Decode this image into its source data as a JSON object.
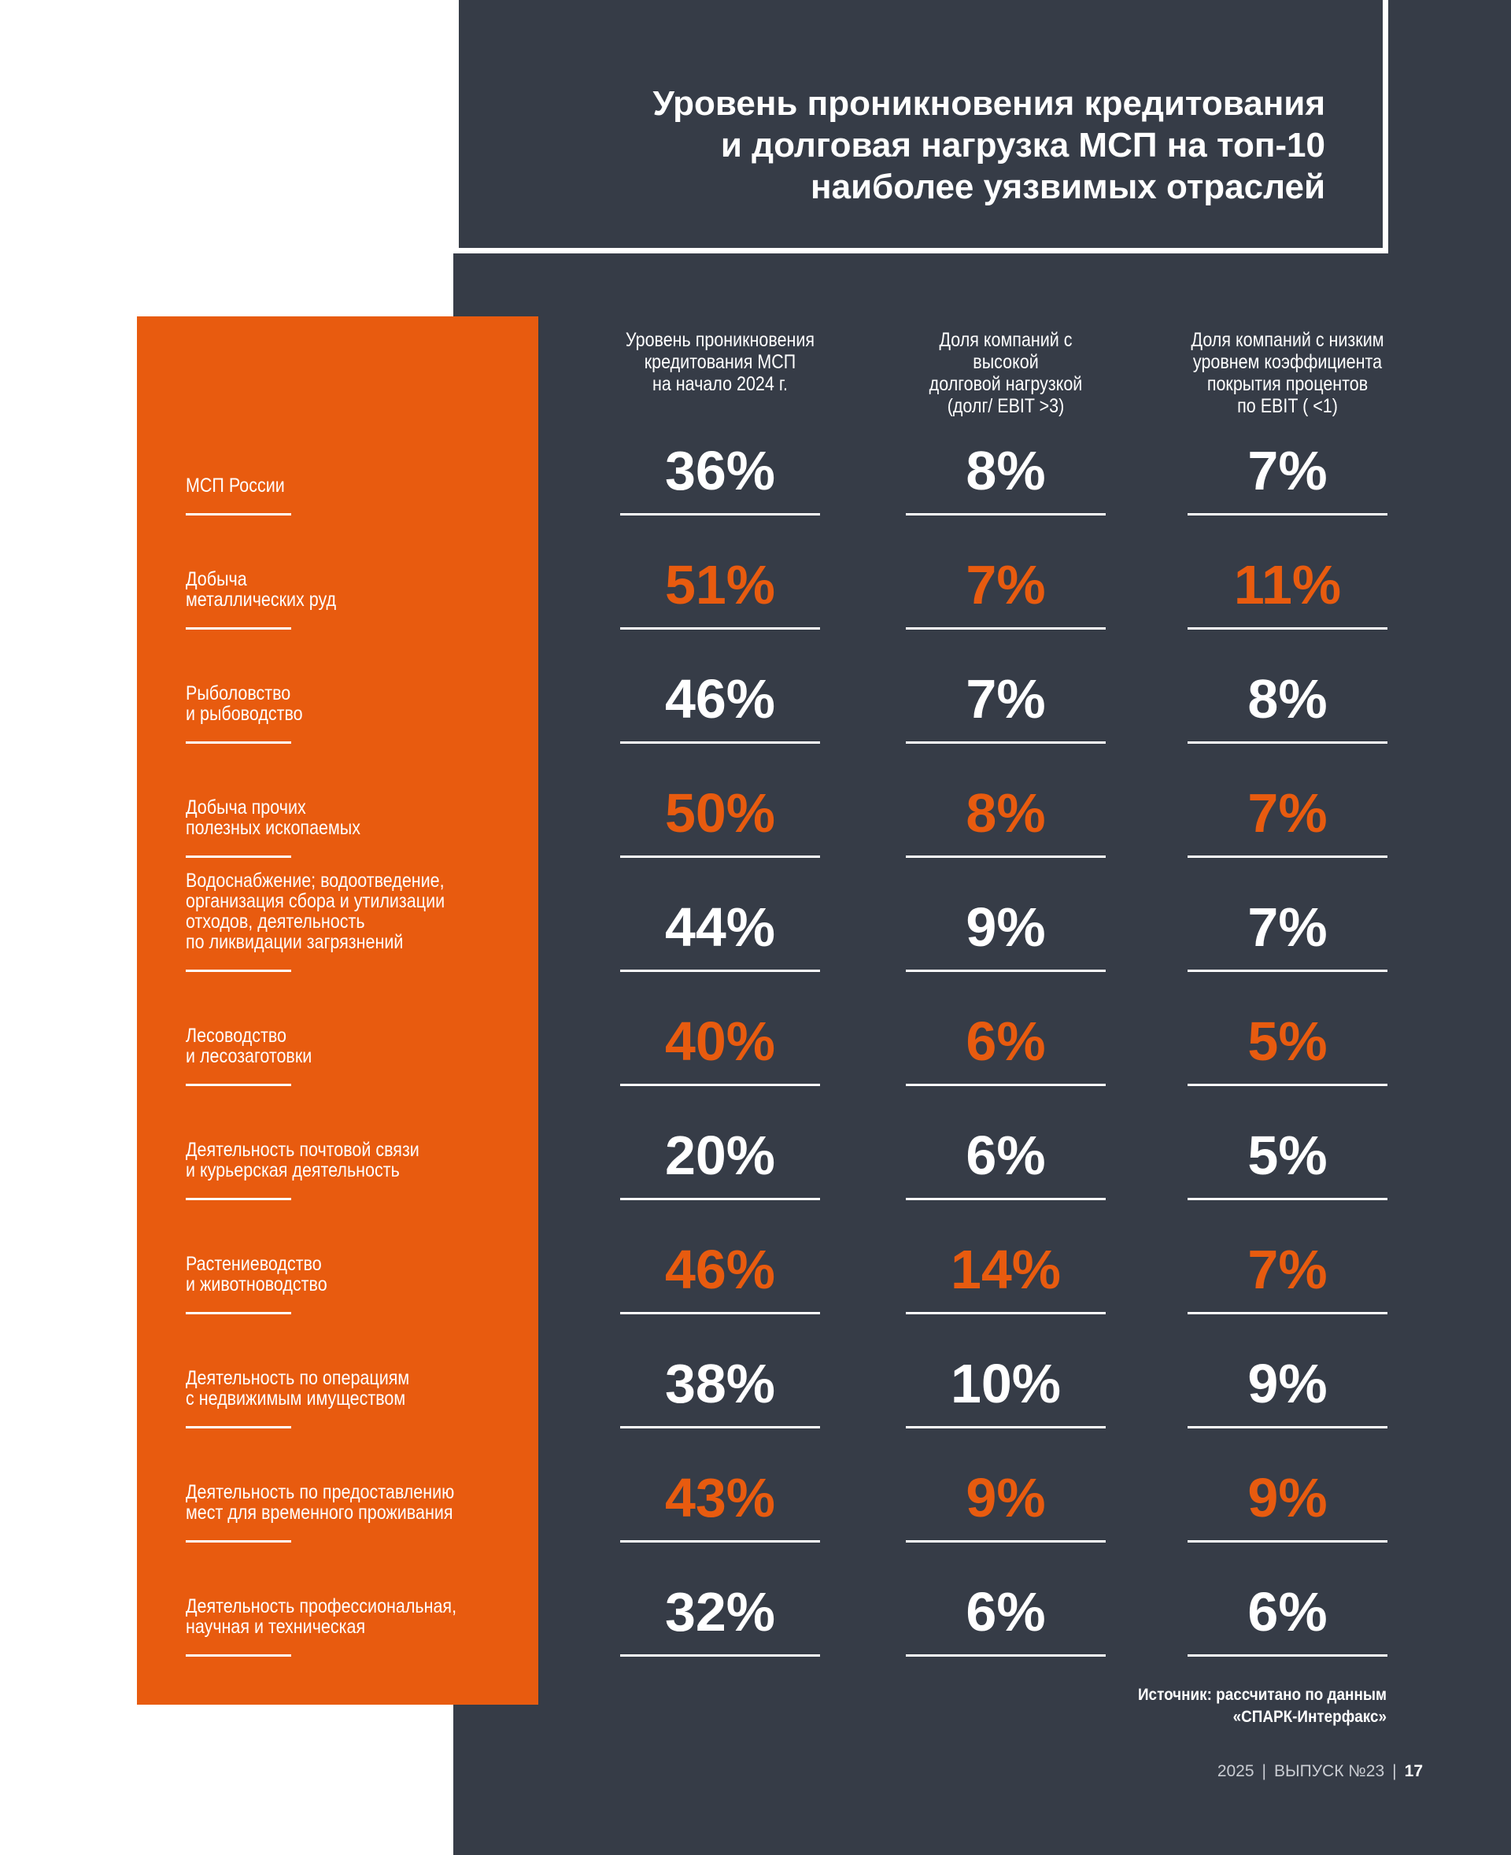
{
  "title": {
    "lines": [
      "Уровень проникновения кредитования",
      "и долговая нагрузка МСП на топ-10",
      "наиболее уязвимых отраслей"
    ]
  },
  "columns": [
    {
      "lines": [
        "Уровень проникновения",
        "кредитования МСП",
        "на начало 2024 г."
      ]
    },
    {
      "lines": [
        "Доля компаний с высокой",
        "долговой нагрузкой",
        "(долг/ EBIT >3)"
      ]
    },
    {
      "lines": [
        "Доля компаний с низким",
        "уровнем коэффициента",
        "покрытия процентов",
        "по EBIT ( <1)"
      ]
    }
  ],
  "rows": [
    {
      "label": [
        "МСП России"
      ],
      "values": [
        "36%",
        "8%",
        "7%"
      ],
      "highlight": false
    },
    {
      "label": [
        "Добыча",
        "металлических руд"
      ],
      "values": [
        "51%",
        "7%",
        "11%"
      ],
      "highlight": true
    },
    {
      "label": [
        "Рыболовство",
        "и рыбоводство"
      ],
      "values": [
        "46%",
        "7%",
        "8%"
      ],
      "highlight": false
    },
    {
      "label": [
        "Добыча прочих",
        "полезных ископаемых"
      ],
      "values": [
        "50%",
        "8%",
        "7%"
      ],
      "highlight": true
    },
    {
      "label": [
        "Водоснабжение; водоотведение,",
        "организация сбора и утилизации",
        "отходов, деятельность",
        "по ликвидации загрязнений"
      ],
      "values": [
        "44%",
        "9%",
        "7%"
      ],
      "highlight": false
    },
    {
      "label": [
        "Лесоводство",
        "и лесозаготовки"
      ],
      "values": [
        "40%",
        "6%",
        "5%"
      ],
      "highlight": true
    },
    {
      "label": [
        "Деятельность почтовой связи",
        "и курьерская деятельность"
      ],
      "values": [
        "20%",
        "6%",
        "5%"
      ],
      "highlight": false
    },
    {
      "label": [
        "Растениеводство",
        "и животноводство"
      ],
      "values": [
        "46%",
        "14%",
        "7%"
      ],
      "highlight": true
    },
    {
      "label": [
        "Деятельность по операциям",
        "с недвижимым имуществом"
      ],
      "values": [
        "38%",
        "10%",
        "9%"
      ],
      "highlight": false
    },
    {
      "label": [
        "Деятельность по предоставлению",
        "мест для временного проживания"
      ],
      "values": [
        "43%",
        "9%",
        "9%"
      ],
      "highlight": true
    },
    {
      "label": [
        "Деятельность профессиональная,",
        "научная и техническая"
      ],
      "values": [
        "32%",
        "6%",
        "6%"
      ],
      "highlight": false
    }
  ],
  "source": {
    "lines": [
      "Источник: рассчитано по данным",
      "«СПАРК-Интерфакс»"
    ]
  },
  "footer": {
    "year": "2025",
    "issue": "ВЫПУСК №23",
    "page": "17",
    "separator": "|"
  },
  "colors": {
    "dark_background": "#363c47",
    "accent_orange": "#e85b0f",
    "text_white": "#ffffff"
  }
}
